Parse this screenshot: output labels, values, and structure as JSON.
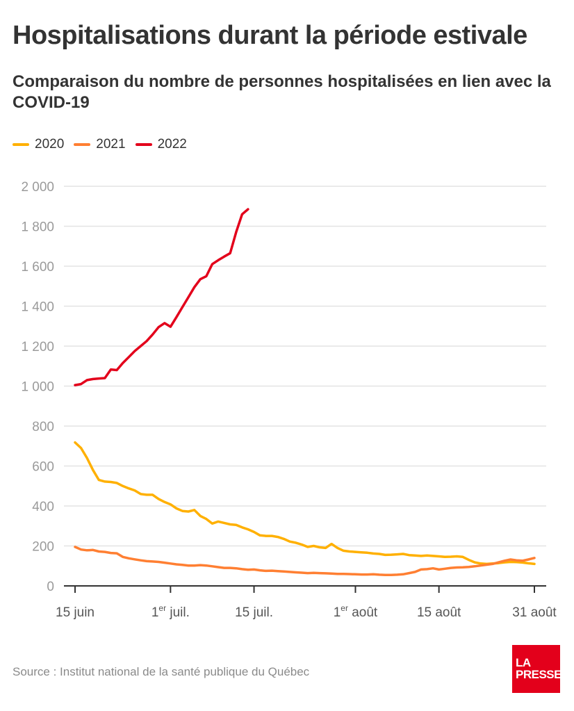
{
  "header": {
    "title": "Hospitalisations durant la période estivale",
    "subtitle": "Comparaison du nombre de personnes hospitalisées en lien avec la COVID-19"
  },
  "footer": {
    "source": "Source : Institut national de la santé publique du Québec",
    "logo_line1": "LA",
    "logo_line2": "PRESSE",
    "logo_color": "#e3001b"
  },
  "chart_data": {
    "type": "line",
    "title": "Hospitalisations durant la période estivale",
    "subtitle": "Comparaison du nombre de personnes hospitalisées en lien avec la COVID-19",
    "xlabel": "",
    "ylabel": "",
    "x_unit": "days since 15 June",
    "xlim": [
      0,
      77
    ],
    "ylim": [
      0,
      2000
    ],
    "grid": true,
    "legend_position": "top-left",
    "y_ticks": [
      0,
      200,
      400,
      600,
      800,
      1000,
      1200,
      1400,
      1600,
      1800,
      2000
    ],
    "y_tick_labels": [
      "0",
      "200",
      "400",
      "600",
      "800",
      "1 000",
      "1 200",
      "1 400",
      "1 600",
      "1 800",
      "2 000"
    ],
    "x_ticks": [
      {
        "day": 0,
        "label": "15 juin",
        "sup": "",
        "post": ""
      },
      {
        "day": 16,
        "label": "1",
        "sup": "er",
        "post": " juil."
      },
      {
        "day": 30,
        "label": "15 juil.",
        "sup": "",
        "post": ""
      },
      {
        "day": 47,
        "label": "1",
        "sup": "er",
        "post": " août"
      },
      {
        "day": 61,
        "label": "15 août",
        "sup": "",
        "post": ""
      },
      {
        "day": 77,
        "label": "31 août",
        "sup": "",
        "post": ""
      }
    ],
    "series": [
      {
        "name": "2020",
        "color": "#ffb000",
        "x": [
          0,
          1,
          2,
          3,
          4,
          5,
          6,
          7,
          8,
          9,
          10,
          11,
          12,
          13,
          14,
          15,
          16,
          17,
          18,
          19,
          20,
          21,
          22,
          23,
          24,
          25,
          26,
          27,
          28,
          29,
          30,
          31,
          32,
          33,
          34,
          35,
          36,
          37,
          38,
          39,
          40,
          41,
          42,
          43,
          44,
          45,
          46,
          47,
          48,
          49,
          50,
          51,
          52,
          53,
          54,
          55,
          56,
          57,
          58,
          59,
          60,
          61,
          62,
          63,
          64,
          65,
          66,
          67,
          68,
          69,
          70,
          71,
          72,
          73,
          74,
          75,
          76,
          77
        ],
        "values": [
          718,
          690,
          640,
          580,
          530,
          522,
          520,
          515,
          500,
          488,
          478,
          460,
          456,
          456,
          435,
          420,
          408,
          388,
          375,
          372,
          380,
          350,
          335,
          312,
          322,
          315,
          308,
          305,
          293,
          283,
          270,
          253,
          250,
          250,
          245,
          235,
          222,
          216,
          207,
          195,
          200,
          193,
          190,
          210,
          190,
          176,
          172,
          170,
          168,
          166,
          162,
          160,
          155,
          156,
          158,
          160,
          154,
          152,
          150,
          152,
          150,
          148,
          145,
          146,
          148,
          145,
          130,
          118,
          112,
          110,
          112,
          114,
          118,
          120,
          119,
          117,
          113,
          110
        ]
      },
      {
        "name": "2021",
        "color": "#ff7f32",
        "x": [
          0,
          1,
          2,
          3,
          4,
          5,
          6,
          7,
          8,
          9,
          10,
          11,
          12,
          13,
          14,
          15,
          16,
          17,
          18,
          19,
          20,
          21,
          22,
          23,
          24,
          25,
          26,
          27,
          28,
          29,
          30,
          31,
          32,
          33,
          34,
          35,
          36,
          37,
          38,
          39,
          40,
          41,
          42,
          43,
          44,
          45,
          46,
          47,
          48,
          49,
          50,
          51,
          52,
          53,
          54,
          55,
          56,
          57,
          58,
          59,
          60,
          61,
          62,
          63,
          64,
          65,
          66,
          67,
          68,
          69,
          70,
          71,
          72,
          73,
          74,
          75,
          76,
          77
        ],
        "values": [
          195,
          182,
          178,
          180,
          172,
          170,
          165,
          163,
          145,
          138,
          133,
          128,
          124,
          122,
          120,
          116,
          112,
          108,
          105,
          102,
          102,
          104,
          102,
          98,
          94,
          90,
          90,
          88,
          84,
          81,
          82,
          78,
          75,
          76,
          74,
          72,
          70,
          68,
          66,
          64,
          65,
          64,
          63,
          62,
          60,
          60,
          59,
          58,
          57,
          57,
          58,
          56,
          55,
          55,
          56,
          58,
          64,
          70,
          82,
          84,
          88,
          82,
          86,
          90,
          92,
          93,
          95,
          98,
          102,
          106,
          110,
          118,
          126,
          132,
          128,
          126,
          132,
          140
        ]
      },
      {
        "name": "2022",
        "color": "#e3001b",
        "x": [
          0,
          1,
          2,
          3,
          4,
          5,
          6,
          7,
          8,
          9,
          10,
          11,
          12,
          13,
          14,
          15,
          16,
          17,
          18,
          19,
          20,
          21,
          22,
          23,
          24,
          25,
          26,
          27,
          28,
          29
        ],
        "values": [
          1005,
          1010,
          1030,
          1035,
          1038,
          1040,
          1083,
          1080,
          1115,
          1145,
          1175,
          1200,
          1225,
          1258,
          1295,
          1315,
          1297,
          1345,
          1395,
          1445,
          1495,
          1535,
          1550,
          1610,
          1630,
          1648,
          1665,
          1770,
          1860,
          1885
        ]
      }
    ]
  }
}
